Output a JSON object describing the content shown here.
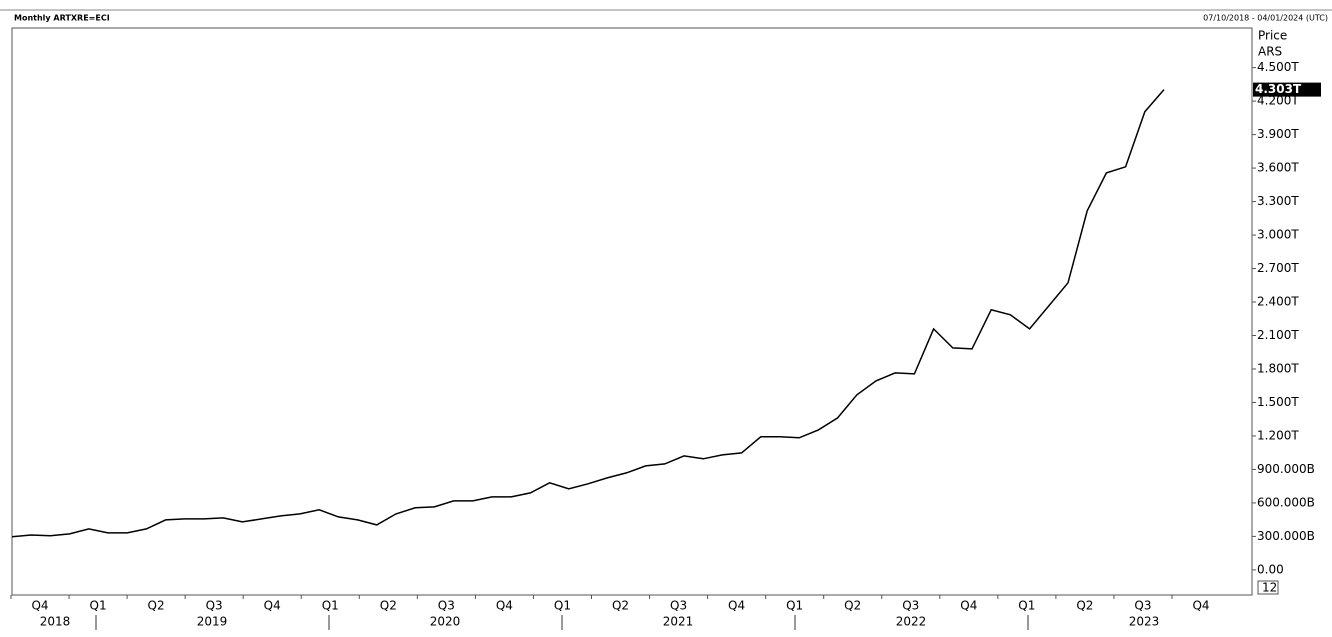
{
  "chart_data": {
    "type": "line",
    "title": "Monthly ARTXRE=ECI",
    "date_range": "07/10/2018 - 04/01/2024 (UTC)",
    "axis_title": "Price",
    "currency": "ARS",
    "last_value_label": "4.303T",
    "interval_label": "12",
    "color": "#000000",
    "values": [
      296,
      313,
      305,
      322,
      367,
      331,
      331,
      367,
      448,
      457,
      457,
      466,
      430,
      457,
      484,
      502,
      538,
      475,
      448,
      403,
      502,
      556,
      564,
      618,
      618,
      654,
      654,
      690,
      780,
      726,
      771,
      824,
      869,
      932,
      950,
      1021,
      995,
      1030,
      1048,
      1192,
      1192,
      1183,
      1254,
      1362,
      1568,
      1693,
      1765,
      1756,
      2159,
      1989,
      1980,
      2330,
      2285,
      2159,
      2365,
      2572,
      3217,
      3557,
      3611,
      4104,
      4303
    ],
    "ylim": [
      -225,
      4855
    ],
    "yticks": [
      {
        "value": 0,
        "label": "0.00"
      },
      {
        "value": 300,
        "label": "300.000B"
      },
      {
        "value": 600,
        "label": "600.000B"
      },
      {
        "value": 900,
        "label": "900.000B"
      },
      {
        "value": 1200,
        "label": "1.200T"
      },
      {
        "value": 1500,
        "label": "1.500T"
      },
      {
        "value": 1800,
        "label": "1.800T"
      },
      {
        "value": 2100,
        "label": "2.100T"
      },
      {
        "value": 2400,
        "label": "2.400T"
      },
      {
        "value": 2700,
        "label": "2.700T"
      },
      {
        "value": 3000,
        "label": "3.000T"
      },
      {
        "value": 3300,
        "label": "3.300T"
      },
      {
        "value": 3600,
        "label": "3.600T"
      },
      {
        "value": 3900,
        "label": "3.900T"
      },
      {
        "value": 4200,
        "label": "4.200T"
      },
      {
        "value": 4500,
        "label": "4.500T"
      }
    ],
    "quarters": [
      "Q4",
      "Q1",
      "Q2",
      "Q3",
      "Q4",
      "Q1",
      "Q2",
      "Q3",
      "Q4",
      "Q1",
      "Q2",
      "Q3",
      "Q4",
      "Q1",
      "Q2",
      "Q3",
      "Q4",
      "Q1",
      "Q2",
      "Q3",
      "Q4"
    ],
    "years": [
      "2018",
      "2019",
      "2020",
      "2021",
      "2022",
      "2023"
    ]
  }
}
